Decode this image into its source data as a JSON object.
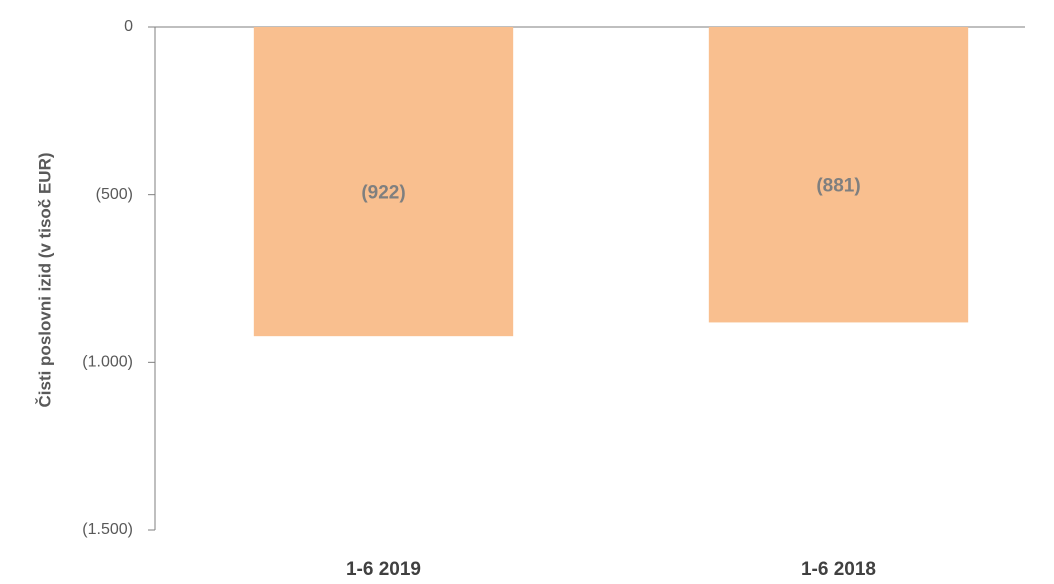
{
  "chart_data": {
    "type": "bar",
    "y_label": "Čisti poslovni izid (v tisoč EUR)",
    "categories": [
      "1-6 2019",
      "1-6 2018"
    ],
    "values": [
      -922,
      -881
    ],
    "value_labels": [
      "(922)",
      "(881)"
    ],
    "color": "#f9bf8f",
    "ylim": [
      -1500,
      0
    ],
    "yticks": [
      0,
      {
        "value": -500,
        "label": "(500)"
      },
      {
        "value": -1000,
        "label": "(1.000)"
      },
      {
        "value": -1500,
        "label": "(1.500)"
      }
    ],
    "grid": false
  }
}
